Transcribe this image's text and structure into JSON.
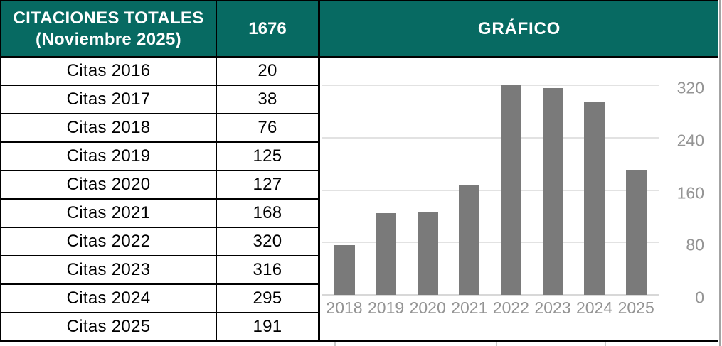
{
  "table": {
    "header": {
      "title_line1": "CITACIONES TOTALES",
      "title_line2": "(Noviembre 2025)",
      "total": "1676"
    },
    "rows": [
      {
        "label": "Citas 2016",
        "value": "20"
      },
      {
        "label": "Citas 2017",
        "value": "38"
      },
      {
        "label": "Citas 2018",
        "value": "76"
      },
      {
        "label": "Citas 2019",
        "value": "125"
      },
      {
        "label": "Citas 2020",
        "value": "127"
      },
      {
        "label": "Citas 2021",
        "value": "168"
      },
      {
        "label": "Citas 2022",
        "value": "320"
      },
      {
        "label": "Citas 2023",
        "value": "316"
      },
      {
        "label": "Citas 2024",
        "value": "295"
      },
      {
        "label": "Citas 2025",
        "value": "191"
      }
    ]
  },
  "chart_panel": {
    "header": "GRÁFICO"
  },
  "chart_data": {
    "type": "bar",
    "title": "GRÁFICO",
    "categories": [
      "2018",
      "2019",
      "2020",
      "2021",
      "2022",
      "2023",
      "2024",
      "2025"
    ],
    "values": [
      76,
      125,
      127,
      168,
      320,
      316,
      295,
      191
    ],
    "xlabel": "",
    "ylabel": "",
    "ylim": [
      0,
      320
    ],
    "yticks": [
      0,
      80,
      160,
      240,
      320
    ],
    "grid": true,
    "legend": "none",
    "y_axis_side": "right"
  },
  "colors": {
    "header_bg": "#076A62",
    "header_text": "#FFFFFF",
    "bar": "#7A7A7A",
    "gridline": "#E2E2E2",
    "zero_line": "#D8D8D8",
    "tick_text": "#949494",
    "border": "#000000"
  }
}
